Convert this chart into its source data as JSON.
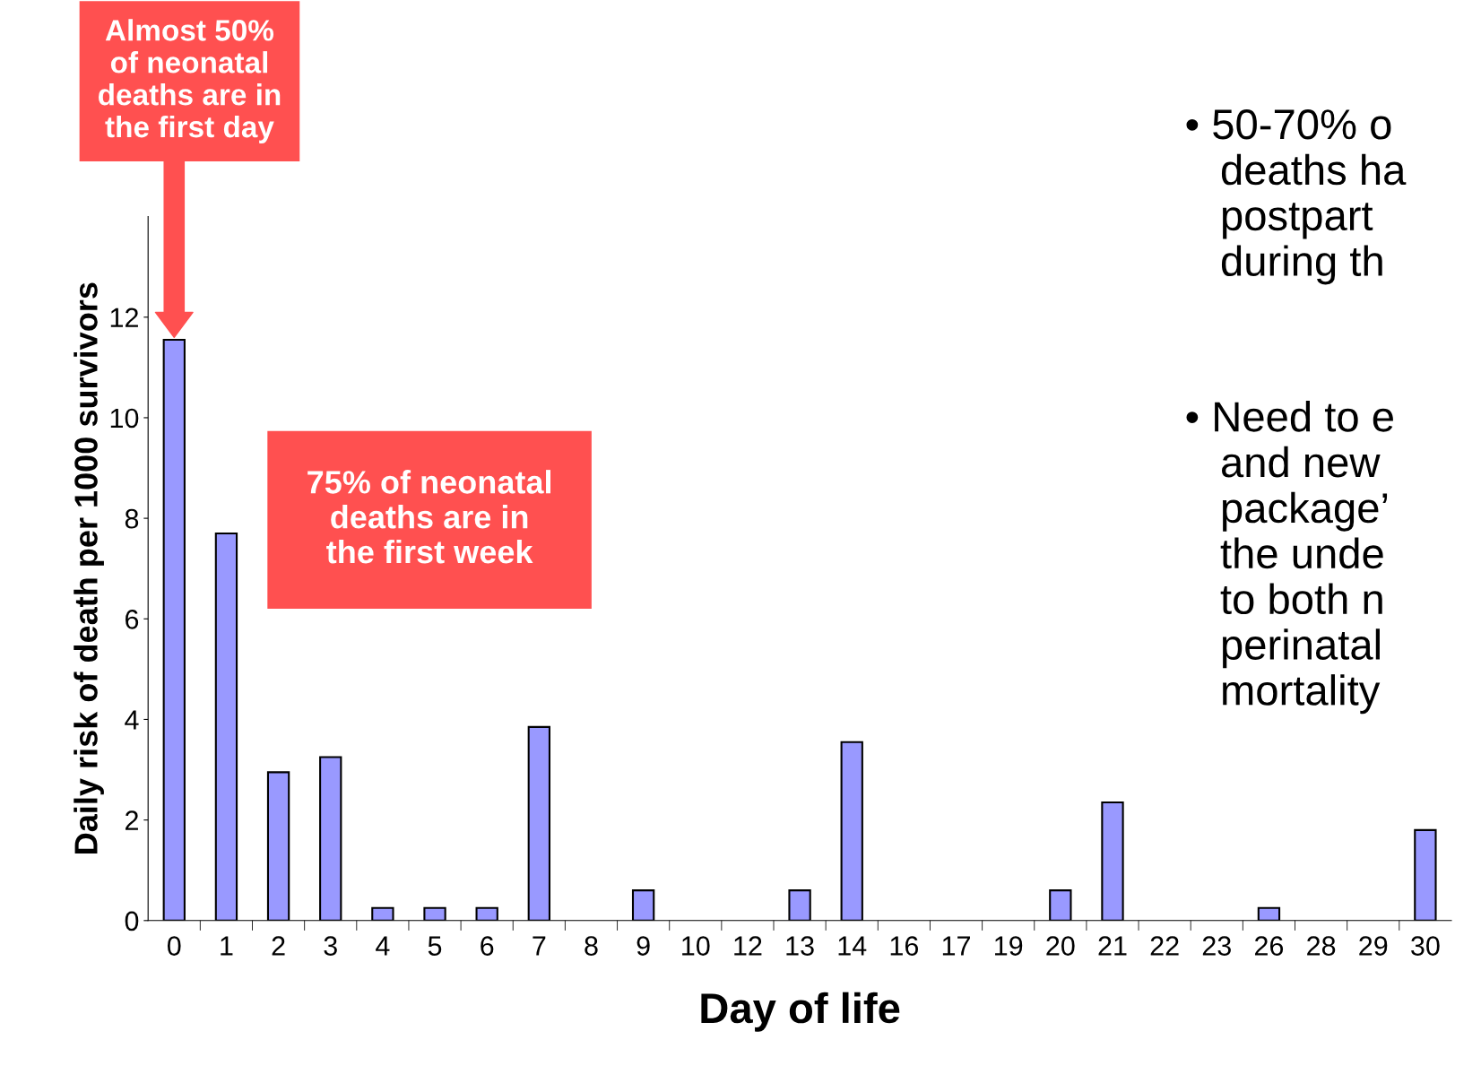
{
  "chart_data": {
    "type": "bar",
    "xlabel": "Day of life",
    "ylabel": "Daily risk of death per 1000 survivors",
    "categories": [
      "0",
      "1",
      "2",
      "3",
      "4",
      "5",
      "6",
      "7",
      "8",
      "9",
      "10",
      "12",
      "13",
      "14",
      "16",
      "17",
      "19",
      "20",
      "21",
      "22",
      "23",
      "26",
      "28",
      "29",
      "30"
    ],
    "values": [
      11.55,
      7.7,
      2.95,
      3.25,
      0.25,
      0.25,
      0.25,
      3.85,
      0,
      0.6,
      0,
      0,
      0.6,
      3.55,
      0,
      0,
      0,
      0.6,
      2.35,
      0,
      0,
      0.25,
      0,
      0,
      1.8
    ],
    "color": "#9999ff",
    "ylim": [
      0,
      14
    ],
    "yticks": [
      0,
      2,
      4,
      6,
      8,
      10,
      12
    ],
    "grid": false,
    "legend": false,
    "annotations": [
      "Almost 50%\nof neonatal\ndeaths are in\nthe first day",
      "75% of neonatal\ndeaths are in\nthe first week",
      "• 50-70% o\n   deaths ha\n   postpart\n   during th",
      "• Need to e\n   and new\n   package’\n   the unde\n   to both n\n   perinatal\n   mortality"
    ]
  }
}
